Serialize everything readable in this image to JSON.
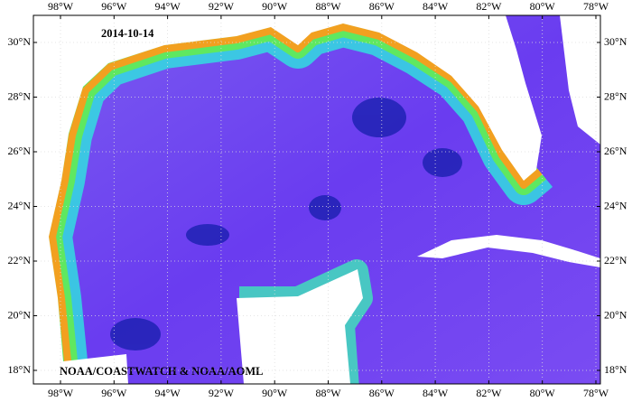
{
  "map": {
    "date": "2014-10-14",
    "credit": "NOAA/COASTWATCH & NOAA/AOML",
    "lon_labels": [
      "98°W",
      "96°W",
      "94°W",
      "92°W",
      "90°W",
      "88°W",
      "86°W",
      "84°W",
      "82°W",
      "80°W",
      "78°W"
    ],
    "lat_labels": [
      "30°N",
      "28°N",
      "26°N",
      "24°N",
      "22°N",
      "20°N",
      "18°N"
    ]
  }
}
